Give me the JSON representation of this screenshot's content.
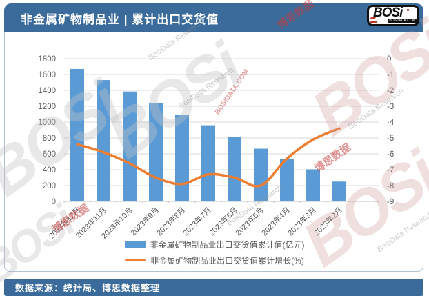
{
  "header": {
    "title": "非金属矿物制品业 | 累计出口交货值",
    "logo": {
      "b": "B",
      "rest": "OSi",
      "domain": "BOSIDATA.COM"
    }
  },
  "footer": {
    "source_label": "数据来源：统计局、博思数据整理"
  },
  "watermarks": {
    "logo_text": "BOSi",
    "brand_cn": "博思数据",
    "research": "BosiData Research",
    "domain": "BOSIDATA.COM"
  },
  "colors": {
    "bar": "#5b9bd5",
    "line": "#ed7d31",
    "grid": "#d9d9d9",
    "axis_line": "#bfbfbf",
    "axis_text": "#595959",
    "banner_bg": "#3a6b9b",
    "accent_red": "#c0392b"
  },
  "chart_data": {
    "type": "bar",
    "subtype": "bar+line combo, dual axis",
    "title": "非金属矿物制品业 | 累计出口交货值",
    "categories": [
      "2023年12月",
      "2023年11月",
      "2023年10月",
      "2023年9月",
      "2023年8月",
      "2023年7月",
      "2023年6月",
      "2023年5月",
      "2023年4月",
      "2023年3月",
      "2023年2月"
    ],
    "series": [
      {
        "name": "非金属矿物制品业出口交货值累计值(亿元)",
        "type": "bar",
        "axis": "left",
        "color": "#5b9bd5",
        "values": [
          1670,
          1530,
          1385,
          1240,
          1090,
          960,
          810,
          665,
          535,
          405,
          250
        ]
      },
      {
        "name": "非金属矿物制品业出口交货值累计增长(%)",
        "type": "line",
        "axis": "right",
        "color": "#ed7d31",
        "values": [
          -5.4,
          -5.9,
          -6.6,
          -7.5,
          -7.9,
          -7.3,
          -7.5,
          -8.0,
          -6.3,
          -5.1,
          -4.4
        ]
      }
    ],
    "left_axis": {
      "min": 0,
      "max": 1800,
      "step": 200,
      "ticks": [
        "1800",
        "1600",
        "1400",
        "1200",
        "1000",
        "800",
        "600",
        "400",
        "200",
        "0"
      ]
    },
    "right_axis": {
      "min": -9,
      "max": 0,
      "step": 1,
      "ticks": [
        "0",
        "-1",
        "-2",
        "-3",
        "-4",
        "-5",
        "-6",
        "-7",
        "-8",
        "-9"
      ]
    },
    "grid": true,
    "legend_position": "bottom"
  }
}
